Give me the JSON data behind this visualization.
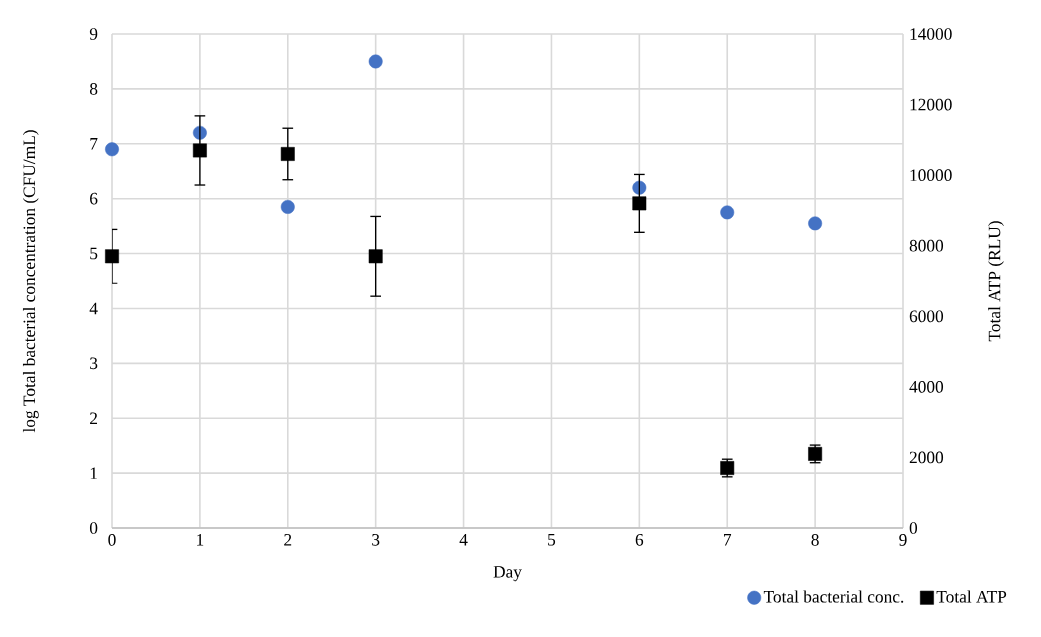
{
  "chart_data": {
    "type": "scatter",
    "xlabel": "Day",
    "ylabel": "log Total bacterial concentration (CFU/mL)",
    "y2label": "Total ATP (RLU)",
    "xlim": [
      0,
      9
    ],
    "xticks": [
      0,
      1,
      2,
      3,
      4,
      5,
      6,
      7,
      8,
      9
    ],
    "ylim": [
      0,
      9
    ],
    "yticks": [
      0,
      1,
      2,
      3,
      4,
      5,
      6,
      7,
      8,
      9
    ],
    "y2lim": [
      0,
      14000
    ],
    "y2ticks": [
      0,
      2000,
      4000,
      6000,
      8000,
      10000,
      12000,
      14000
    ],
    "grid": true,
    "legend": "bottom right",
    "series": [
      {
        "name": "Total bacterial conc.",
        "color": "#4472c4",
        "marker": "circle",
        "x": [
          0,
          1,
          2,
          3,
          6,
          7,
          8
        ],
        "values": [
          6.9,
          7.2,
          5.85,
          8.5,
          6.2,
          5.75,
          5.55
        ]
      },
      {
        "name": "Total ATP",
        "color": "#000000",
        "marker": "square",
        "axis": "y2",
        "x": [
          0,
          1,
          2,
          3,
          6,
          7,
          8
        ],
        "values": [
          7700,
          10700,
          10600,
          7700,
          9200,
          1700,
          2100
        ],
        "errors": [
          760,
          980,
          730,
          1130,
          820,
          250,
          250
        ]
      }
    ]
  }
}
